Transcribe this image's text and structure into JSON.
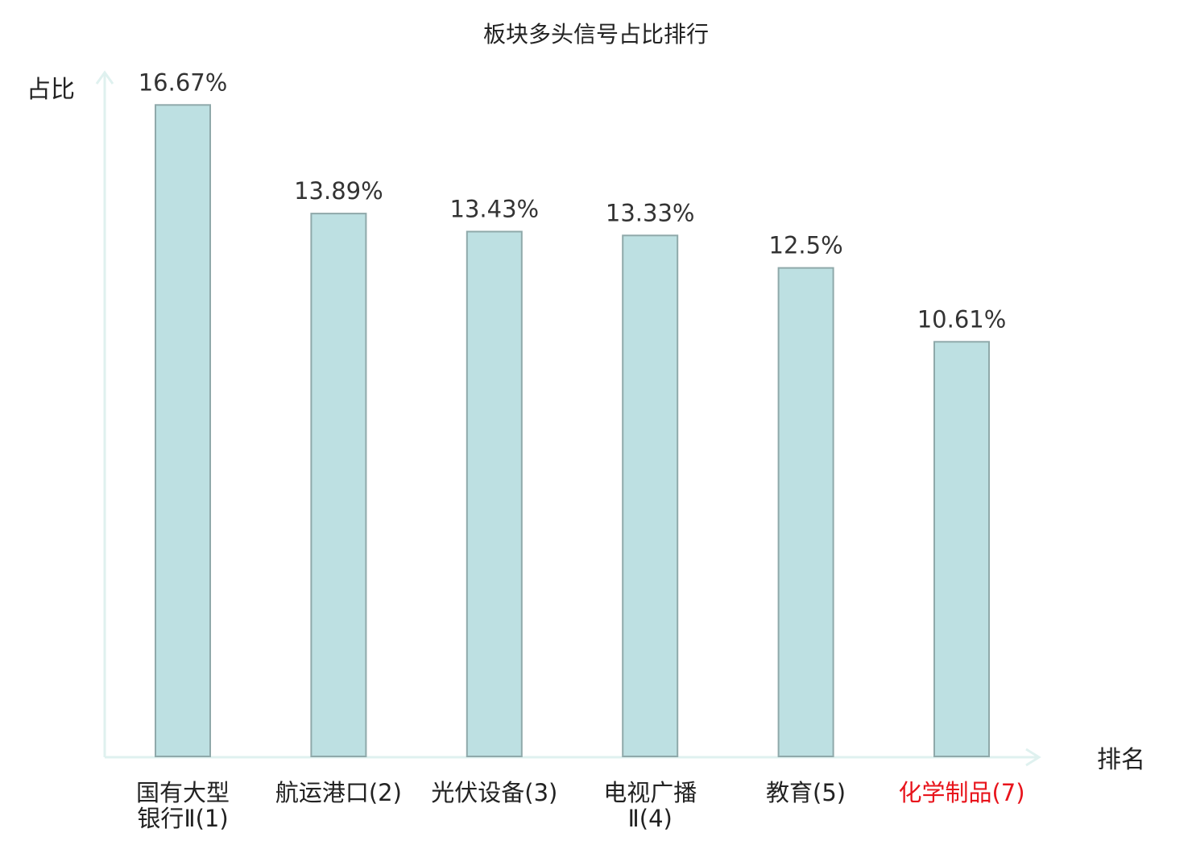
{
  "chart_data": {
    "type": "bar",
    "title": "板块多头信号占比排行",
    "ylabel": "占比",
    "xlabel": "排名",
    "ylim": [
      0,
      17.5
    ],
    "grid": false,
    "categories": [
      {
        "lines": [
          "国有大型",
          "银行Ⅱ(1)"
        ],
        "highlight": false
      },
      {
        "lines": [
          "航运港口(2)"
        ],
        "highlight": false
      },
      {
        "lines": [
          "光伏设备(3)"
        ],
        "highlight": false
      },
      {
        "lines": [
          "电视广播",
          "Ⅱ(4)"
        ],
        "highlight": false
      },
      {
        "lines": [
          "教育(5)"
        ],
        "highlight": false
      },
      {
        "lines": [
          "化学制品(7)"
        ],
        "highlight": true
      }
    ],
    "values": [
      16.67,
      13.89,
      13.43,
      13.33,
      12.5,
      10.61
    ],
    "value_labels": [
      "16.67%",
      "13.89%",
      "13.43%",
      "13.33%",
      "12.5%",
      "10.61%"
    ],
    "colors": {
      "bar_fill": "#bde0e2",
      "bar_stroke": "#8fa9aa",
      "axis": "#dff1ef",
      "text": "#333333",
      "highlight_text": "#e8141c"
    }
  }
}
